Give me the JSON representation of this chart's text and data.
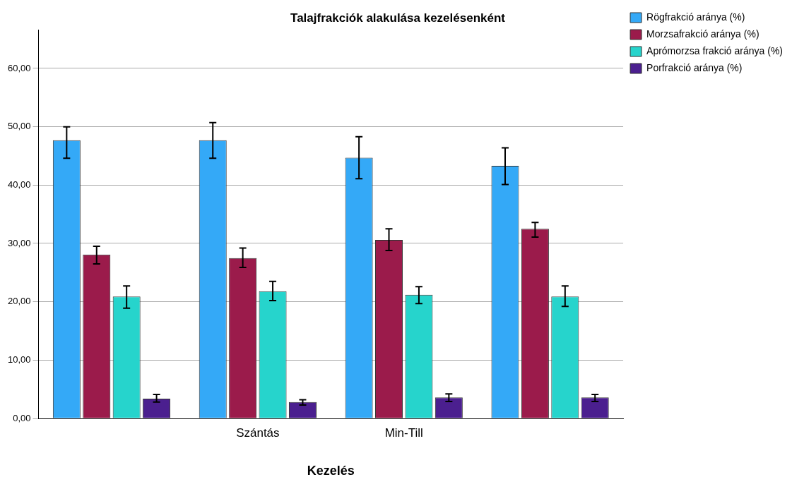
{
  "chart_data": {
    "type": "bar",
    "title": "Talajfrakciók alakulása kezelésenként",
    "xlabel": "Kezelés",
    "categories": [
      null,
      "Szántás",
      "Min-Till",
      null
    ],
    "series": [
      {
        "name": "Rögfrakció aránya (%)",
        "color": "#34a9f7",
        "values": [
          47.7,
          47.7,
          44.7,
          43.3
        ],
        "errors": [
          [
            44.6,
            50.0
          ],
          [
            44.6,
            50.7
          ],
          [
            41.1,
            48.3
          ],
          [
            40.1,
            46.4
          ]
        ]
      },
      {
        "name": "Morzsafrakció aránya (%)",
        "color": "#9b1b4b",
        "values": [
          28.1,
          27.5,
          30.6,
          32.5
        ],
        "errors": [
          [
            26.5,
            29.5
          ],
          [
            25.9,
            29.2
          ],
          [
            28.8,
            32.5
          ],
          [
            31.1,
            33.6
          ]
        ]
      },
      {
        "name": "Aprómorzsa frakció aránya (%)",
        "color": "#26d4cc",
        "values": [
          20.9,
          21.8,
          21.2,
          20.9
        ],
        "errors": [
          [
            18.9,
            22.7
          ],
          [
            20.2,
            23.5
          ],
          [
            19.7,
            22.6
          ],
          [
            19.2,
            22.7
          ]
        ]
      },
      {
        "name": "Porfrakció aránya (%)",
        "color": "#4b1f8f",
        "values": [
          3.4,
          2.8,
          3.6,
          3.6
        ],
        "errors": [
          [
            2.8,
            4.1
          ],
          [
            2.3,
            3.2
          ],
          [
            2.9,
            4.2
          ],
          [
            2.9,
            4.1
          ]
        ]
      }
    ],
    "ylim": [
      0,
      66.6
    ],
    "yticks": [
      {
        "value": 0,
        "label": "0,00"
      },
      {
        "value": 10,
        "label": "10,00"
      },
      {
        "value": 20,
        "label": "20,00"
      },
      {
        "value": 30,
        "label": "30,00"
      },
      {
        "value": 40,
        "label": "40,00"
      },
      {
        "value": 50,
        "label": "50,00"
      },
      {
        "value": 60,
        "label": "60,00"
      }
    ],
    "grid": "y",
    "legend": "top right"
  }
}
